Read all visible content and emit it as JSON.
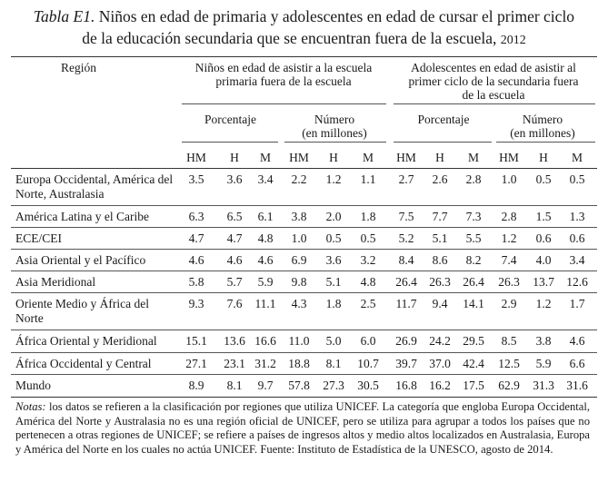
{
  "title": {
    "prefix": "Tabla E1.",
    "line1": "Niños en edad de primaria y adolescentes en edad de cursar el primer ciclo",
    "line2": "de la educación secundaria que se encuentran fuera de la escuela,",
    "year": "2012"
  },
  "headers": {
    "region": "Región",
    "group1": [
      "Niños en edad de asistir a la escuela",
      "primaria fuera de la escuela"
    ],
    "group2": [
      "Adolescentes en edad de asistir al",
      "primer ciclo de la secundaria fuera",
      "de la escuela"
    ],
    "pct": "Porcentaje",
    "num": [
      "Número",
      "(en millones)"
    ],
    "sub": [
      "HM",
      "H",
      "M",
      "HM",
      "H",
      "M",
      "HM",
      "H",
      "M",
      "HM",
      "H",
      "M"
    ]
  },
  "rows": [
    {
      "region": [
        "Europa Occidental, América del",
        "Norte, Australasia"
      ],
      "values": [
        "3.5",
        "3.6",
        "3.4",
        "2.2",
        "1.2",
        "1.1",
        "2.7",
        "2.6",
        "2.8",
        "1.0",
        "0.5",
        "0.5"
      ]
    },
    {
      "region": [
        "América Latina y el Caribe"
      ],
      "values": [
        "6.3",
        "6.5",
        "6.1",
        "3.8",
        "2.0",
        "1.8",
        "7.5",
        "7.7",
        "7.3",
        "2.8",
        "1.5",
        "1.3"
      ]
    },
    {
      "region": [
        "ECE/CEI"
      ],
      "values": [
        "4.7",
        "4.7",
        "4.8",
        "1.0",
        "0.5",
        "0.5",
        "5.2",
        "5.1",
        "5.5",
        "1.2",
        "0.6",
        "0.6"
      ]
    },
    {
      "region": [
        "Asia Oriental y el Pacífico"
      ],
      "values": [
        "4.6",
        "4.6",
        "4.6",
        "6.9",
        "3.6",
        "3.2",
        "8.4",
        "8.6",
        "8.2",
        "7.4",
        "4.0",
        "3.4"
      ]
    },
    {
      "region": [
        "Asia Meridional"
      ],
      "values": [
        "5.8",
        "5.7",
        "5.9",
        "9.8",
        "5.1",
        "4.8",
        "26.4",
        "26.3",
        "26.4",
        "26.3",
        "13.7",
        "12.6"
      ]
    },
    {
      "region": [
        "Oriente Medio y África del",
        "Norte"
      ],
      "values": [
        "9.3",
        "7.6",
        "11.1",
        "4.3",
        "1.8",
        "2.5",
        "11.7",
        "9.4",
        "14.1",
        "2.9",
        "1.2",
        "1.7"
      ]
    },
    {
      "region": [
        "África Oriental y Meridional"
      ],
      "values": [
        "15.1",
        "13.6",
        "16.6",
        "11.0",
        "5.0",
        "6.0",
        "26.9",
        "24.2",
        "29.5",
        "8.5",
        "3.8",
        "4.6"
      ]
    },
    {
      "region": [
        "África Occidental y Central"
      ],
      "values": [
        "27.1",
        "23.1",
        "31.2",
        "18.8",
        "8.1",
        "10.7",
        "39.7",
        "37.0",
        "42.4",
        "12.5",
        "5.9",
        "6.6"
      ]
    },
    {
      "region": [
        "Mundo"
      ],
      "values": [
        "8.9",
        "8.1",
        "9.7",
        "57.8",
        "27.3",
        "30.5",
        "16.8",
        "16.2",
        "17.5",
        "62.9",
        "31.3",
        "31.6"
      ]
    }
  ],
  "notes": {
    "label": "Notas:",
    "text": "los datos se refieren a la clasificación por regiones que utiliza UNICEF. La categoría que engloba Europa Occidental, América del Norte y Australasia no es una región oficial de UNICEF, pero se utiliza para agrupar a todos los países que no pertenecen a otras regiones de UNICEF; se refiere a países de ingresos altos y medio altos localizados en Australasia, Europa y América del Norte en los cuales no actúa UNICEF. Fuente: Instituto de Estadística de la UNESCO, agosto de 2014."
  }
}
